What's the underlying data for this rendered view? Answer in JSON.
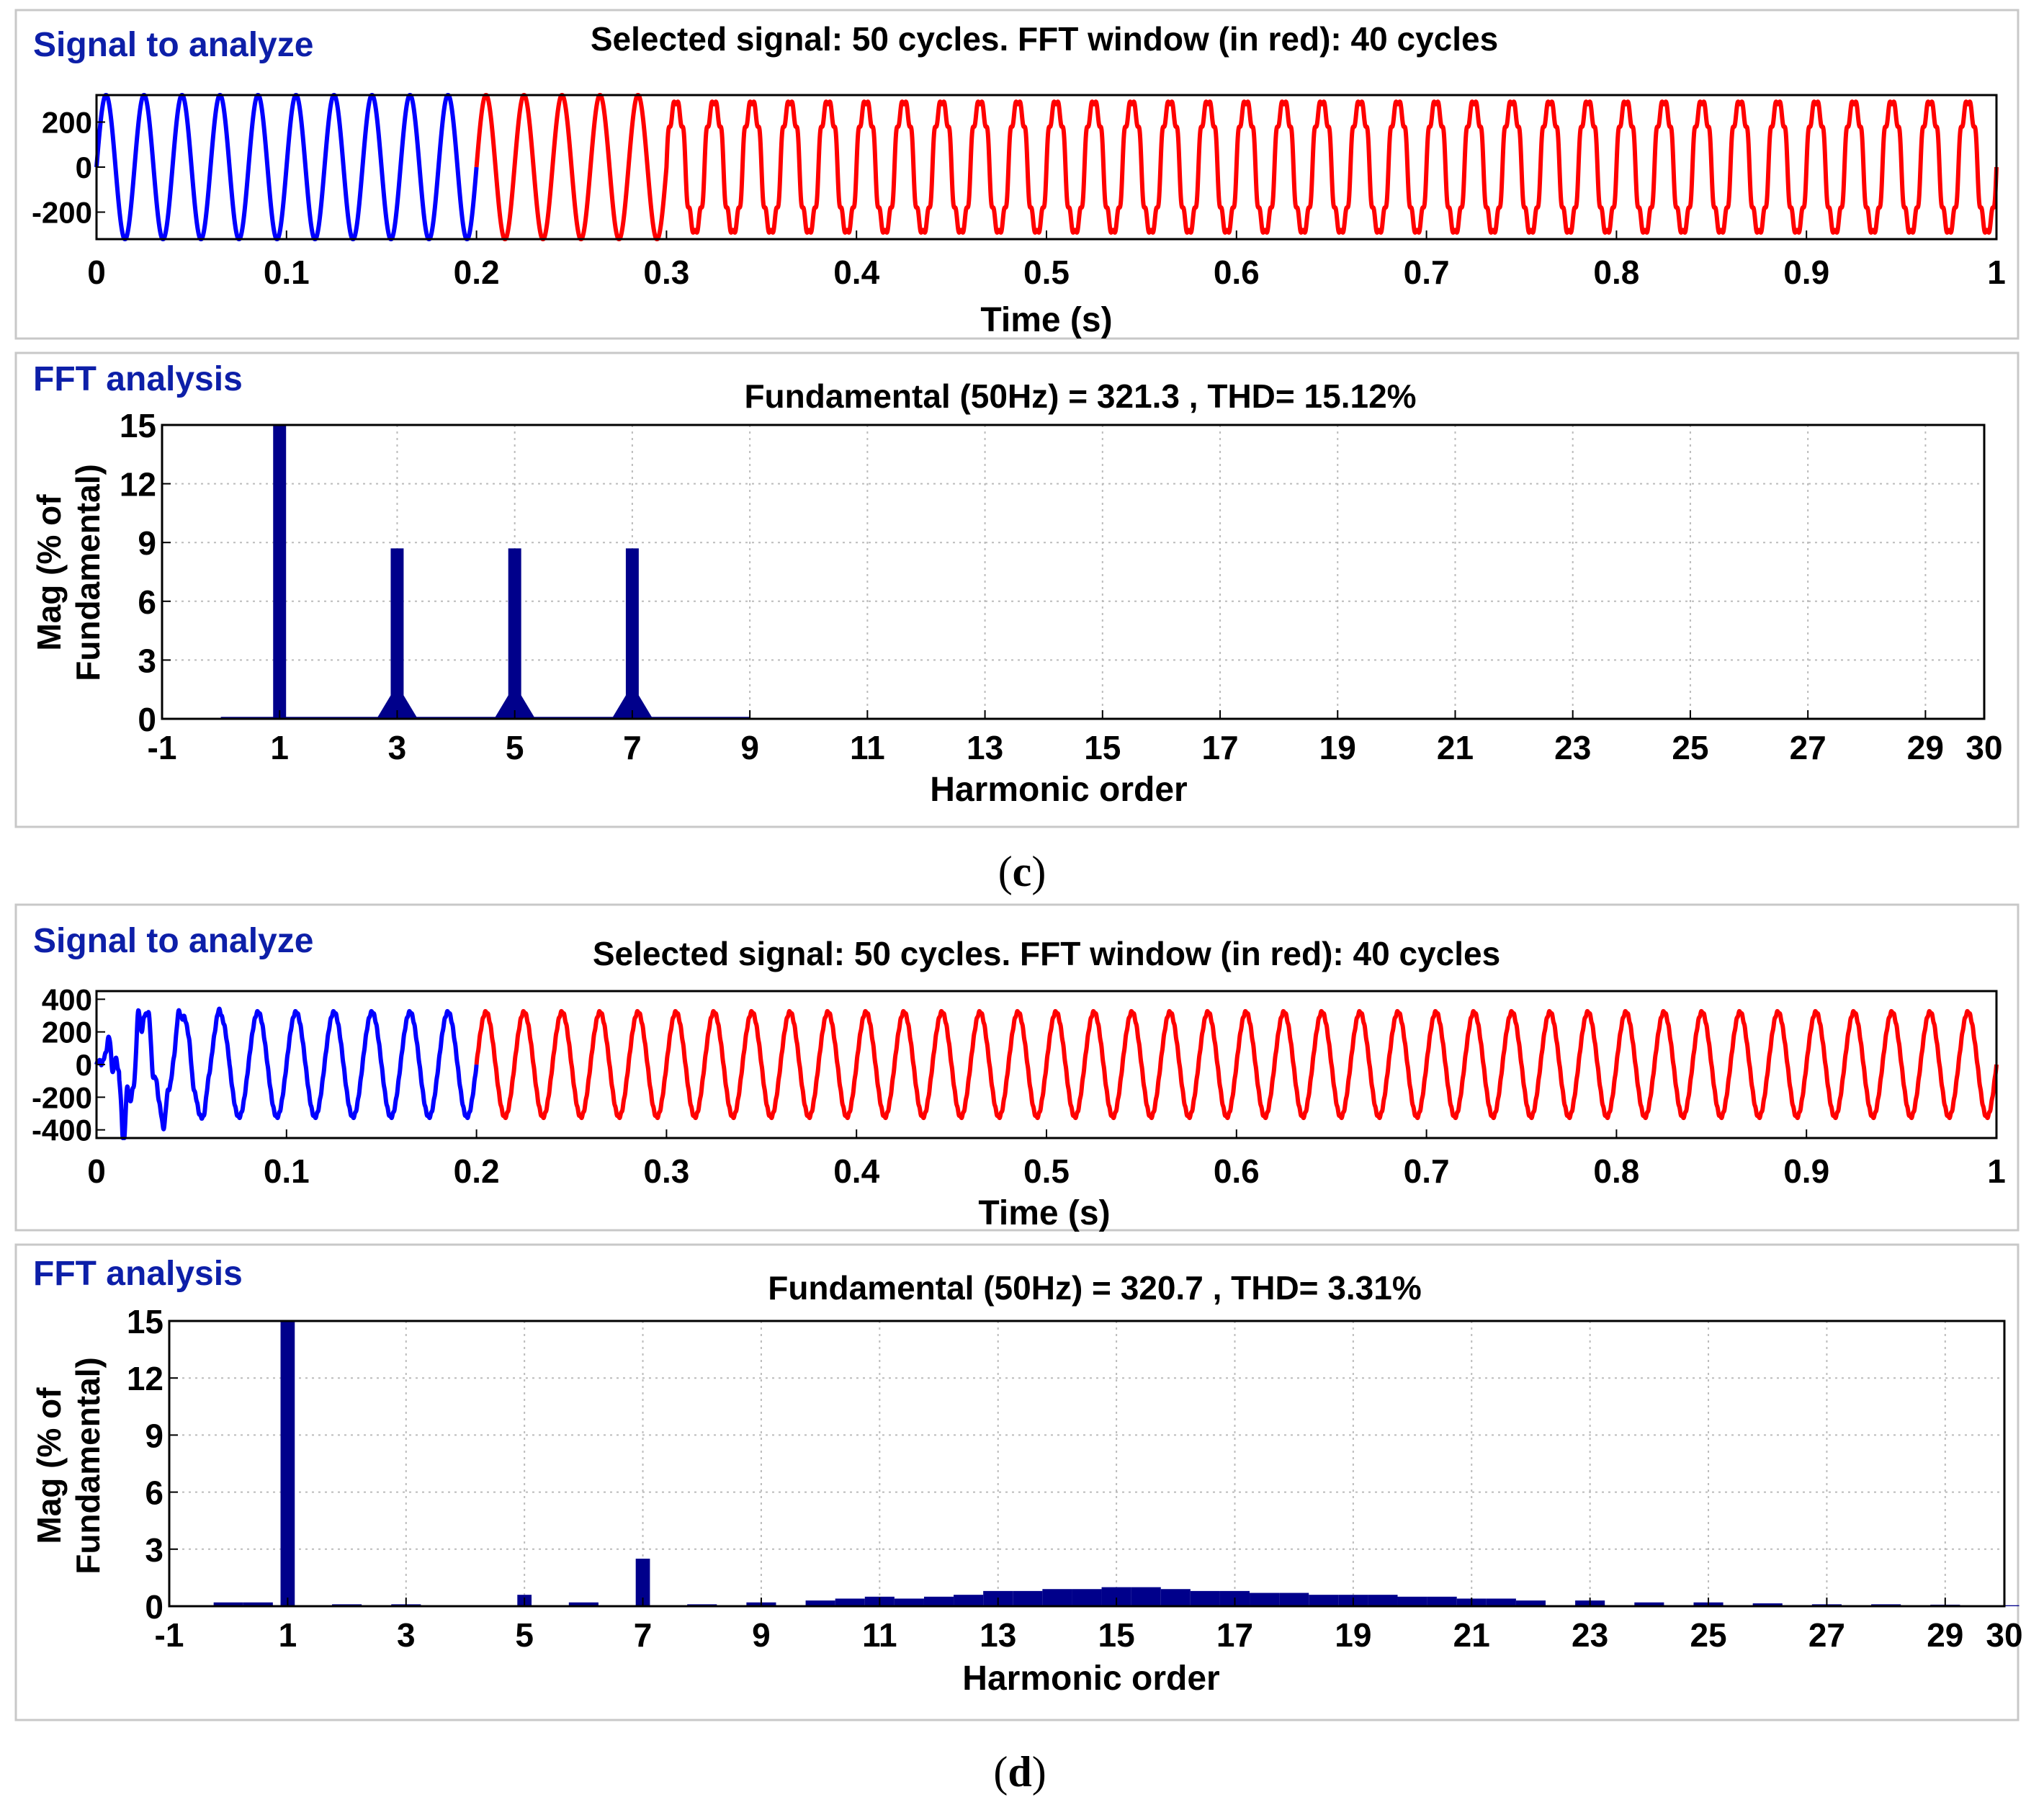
{
  "colors": {
    "signal_pre_window": "#0000ff",
    "signal_fft_window": "#ff0000",
    "fft_bars": "#00008b",
    "panel_label": "#0d1fa8",
    "grid": "#bbbbbb",
    "panel_border": "#c8c8c8"
  },
  "figures": [
    {
      "caption": {
        "open": "(",
        "letter": "c",
        "close": ")"
      },
      "signal_panel": {
        "label": "Signal to analyze",
        "title": "Selected signal: 50 cycles. FFT window (in red): 40 cycles"
      },
      "fft_panel": {
        "label": "FFT analysis",
        "title": "Fundamental (50Hz) = 321.3 , THD= 15.12%"
      }
    },
    {
      "caption": {
        "open": "(",
        "letter": "d",
        "close": ")"
      },
      "signal_panel": {
        "label": "Signal to analyze",
        "title": "Selected signal: 50 cycles. FFT window (in red): 40 cycles"
      },
      "fft_panel": {
        "label": "FFT analysis",
        "title": "Fundamental (50Hz) = 320.7 , THD= 3.31%"
      }
    }
  ],
  "chart_data": [
    {
      "type": "line",
      "figure": "c",
      "title": "Selected signal: 50 cycles. FFT window (in red): 40 cycles",
      "xlabel": "Time (s)",
      "ylabel": "",
      "xlim": [
        0,
        1
      ],
      "ylim": [
        -320,
        320
      ],
      "xticks": [
        "0",
        "0.1",
        "0.2",
        "0.3",
        "0.4",
        "0.5",
        "0.6",
        "0.7",
        "0.8",
        "0.9",
        "1"
      ],
      "yticks": [
        "200",
        "0",
        "-200"
      ],
      "ytick_values": [
        200,
        0,
        -200
      ],
      "frequency_hz": 50,
      "cycles_total": 50,
      "fft_window_start_s": 0.2,
      "fft_window_cycles": 40,
      "series": [
        {
          "name": "signal (before FFT window)",
          "color": "blue",
          "x_range": [
            0,
            0.2
          ],
          "amplitude": 321,
          "waveform": "sinusoidal"
        },
        {
          "name": "FFT window",
          "color": "red",
          "x_range": [
            0.2,
            1.0
          ],
          "amplitude": 321,
          "waveform": "sinusoidal to 0.3 s, then flat-topped (odd harmonics 3, 5, 7)"
        }
      ]
    },
    {
      "type": "bar",
      "figure": "c",
      "title": "Fundamental (50Hz) = 321.3 , THD= 15.12%",
      "xlabel": "Harmonic order",
      "ylabel": "Mag (% of Fundamental)",
      "xlim": [
        -1,
        30
      ],
      "ylim": [
        0,
        15
      ],
      "xticks": [
        "-1",
        "1",
        "3",
        "5",
        "7",
        "9",
        "11",
        "13",
        "15",
        "17",
        "19",
        "21",
        "23",
        "25",
        "27",
        "29",
        "30"
      ],
      "yticks": [
        "0",
        "3",
        "6",
        "9",
        "12",
        "15"
      ],
      "harmonic_orders": [
        1,
        3,
        5,
        7
      ],
      "values": [
        15,
        8.7,
        8.7,
        8.7
      ],
      "note": "fundamental bar clipped at axis top (100%)",
      "background_level": 0.1
    },
    {
      "type": "line",
      "figure": "d",
      "title": "Selected signal: 50 cycles. FFT window (in red): 40 cycles",
      "xlabel": "Time (s)",
      "ylabel": "",
      "xlim": [
        0,
        1
      ],
      "ylim": [
        -450,
        450
      ],
      "xticks": [
        "0",
        "0.1",
        "0.2",
        "0.3",
        "0.4",
        "0.5",
        "0.6",
        "0.7",
        "0.8",
        "0.9",
        "1"
      ],
      "yticks": [
        "400",
        "200",
        "0",
        "-200",
        "-400"
      ],
      "ytick_values": [
        400,
        200,
        0,
        -200,
        -400
      ],
      "frequency_hz": 50,
      "cycles_total": 50,
      "fft_window_start_s": 0.2,
      "fft_window_cycles": 40,
      "series": [
        {
          "name": "signal (before FFT window)",
          "color": "blue",
          "x_range": [
            0,
            0.2
          ],
          "amplitude": 321,
          "waveform": "transient up to about 530 peak, settling by 0.06 s"
        },
        {
          "name": "FFT window",
          "color": "red",
          "x_range": [
            0.2,
            1.0
          ],
          "amplitude": 321,
          "waveform": "near-sinusoidal with small ripple"
        }
      ]
    },
    {
      "type": "bar",
      "figure": "d",
      "title": "Fundamental (50Hz) = 320.7 , THD= 3.31%",
      "xlabel": "Harmonic order",
      "ylabel": "Mag (% of Fundamental)",
      "xlim": [
        -1,
        30
      ],
      "ylim": [
        0,
        15
      ],
      "xticks": [
        "-1",
        "1",
        "3",
        "5",
        "7",
        "9",
        "11",
        "13",
        "15",
        "17",
        "19",
        "21",
        "23",
        "25",
        "27",
        "29",
        "30"
      ],
      "yticks": [
        "0",
        "3",
        "6",
        "9",
        "12",
        "15"
      ],
      "harmonic_orders": [
        0,
        0.5,
        1,
        2,
        3,
        4,
        5,
        6,
        7,
        8,
        9,
        10,
        10.5,
        11,
        11.5,
        12,
        12.5,
        13,
        13.5,
        14,
        14.5,
        15,
        15.5,
        16,
        16.5,
        17,
        17.5,
        18,
        18.5,
        19,
        19.5,
        20,
        20.5,
        21,
        21.5,
        22,
        23,
        24,
        25,
        26,
        27,
        28,
        29,
        30
      ],
      "values": [
        0.2,
        0.2,
        15,
        0.1,
        0.1,
        0.05,
        0.6,
        0.2,
        2.5,
        0.1,
        0.2,
        0.3,
        0.4,
        0.5,
        0.4,
        0.5,
        0.6,
        0.8,
        0.8,
        0.9,
        0.9,
        1.0,
        1.0,
        0.9,
        0.8,
        0.8,
        0.7,
        0.7,
        0.6,
        0.6,
        0.6,
        0.5,
        0.5,
        0.4,
        0.4,
        0.3,
        0.3,
        0.2,
        0.2,
        0.15,
        0.1,
        0.1,
        0.08,
        0.05
      ],
      "note": "fundamental bar clipped at axis top (100%)"
    }
  ]
}
